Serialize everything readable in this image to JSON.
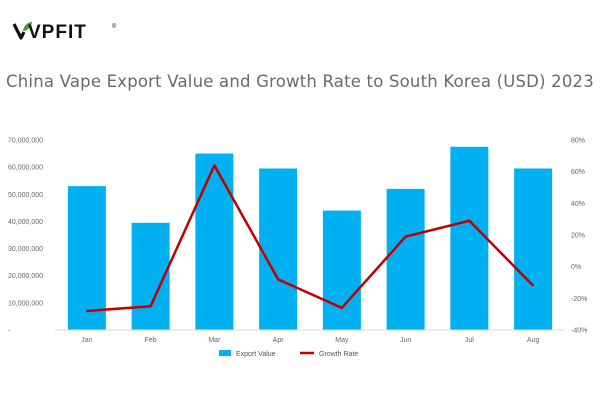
{
  "brand": {
    "name": "VPFIT",
    "registered_mark": "®"
  },
  "chart_data": {
    "type": "bar+line",
    "title": "China Vape Export Value and Growth Rate to South Korea (USD) 2023",
    "categories": [
      "Jan",
      "Feb",
      "Mar",
      "Apr",
      "May",
      "Jun",
      "Jul",
      "Aug"
    ],
    "series": [
      {
        "name": "Export Value",
        "type": "bar",
        "axis": "left",
        "color": "#00b0f0",
        "values": [
          53000000,
          39500000,
          65000000,
          59500000,
          44000000,
          52000000,
          67500000,
          59500000
        ]
      },
      {
        "name": "Growth Rate",
        "type": "line",
        "axis": "right",
        "color": "#c00000",
        "values": [
          -28,
          -25,
          64,
          -8,
          -26,
          19,
          29,
          -12
        ]
      }
    ],
    "y_left": {
      "min": 0,
      "max": 70000000,
      "ticks": [
        0,
        10000000,
        20000000,
        30000000,
        40000000,
        50000000,
        60000000,
        70000000
      ],
      "tick_labels": [
        "-",
        "10,000,000",
        "20,000,000",
        "30,000,000",
        "40,000,000",
        "50,000,000",
        "60,000,000",
        "70,000,000"
      ]
    },
    "y_right": {
      "min": -40,
      "max": 80,
      "ticks": [
        -40,
        -20,
        0,
        20,
        40,
        60,
        80
      ],
      "tick_labels": [
        "-40%",
        "-20%",
        "0%",
        "20%",
        "40%",
        "60%",
        "80%"
      ]
    },
    "grid": false,
    "legend": {
      "position": "bottom",
      "entries": [
        "Export Value",
        "Growth Rate"
      ]
    }
  }
}
